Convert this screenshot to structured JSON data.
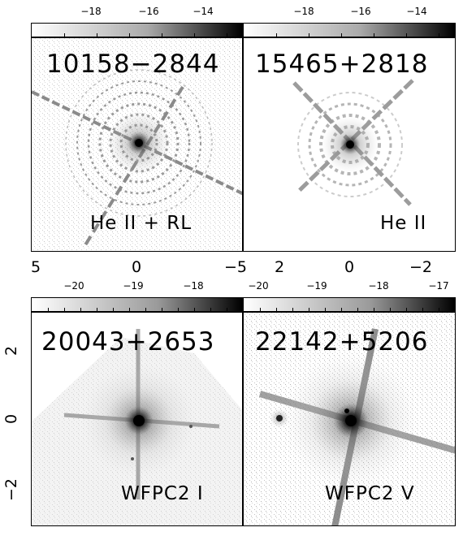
{
  "panels": [
    {
      "id": "10158−2844",
      "label": "He II + RL",
      "colorbar_ticks": [
        "−18",
        "−16",
        "−14"
      ],
      "x_ticks": [
        "5",
        "0",
        "−5"
      ]
    },
    {
      "id": "15465+2818",
      "label": "He II",
      "colorbar_ticks": [
        "−18",
        "−16",
        "−14"
      ],
      "x_ticks": [
        "2",
        "0",
        "−2"
      ]
    },
    {
      "id": "20043+2653",
      "label": "WFPC2 I",
      "colorbar_ticks": [
        "−20",
        "−19",
        "−18"
      ],
      "y_ticks": [
        "2",
        "0",
        "−2"
      ]
    },
    {
      "id": "22142+5206",
      "label": "WFPC2 V",
      "colorbar_ticks": [
        "−20",
        "−19",
        "−18",
        "−17"
      ]
    }
  ]
}
